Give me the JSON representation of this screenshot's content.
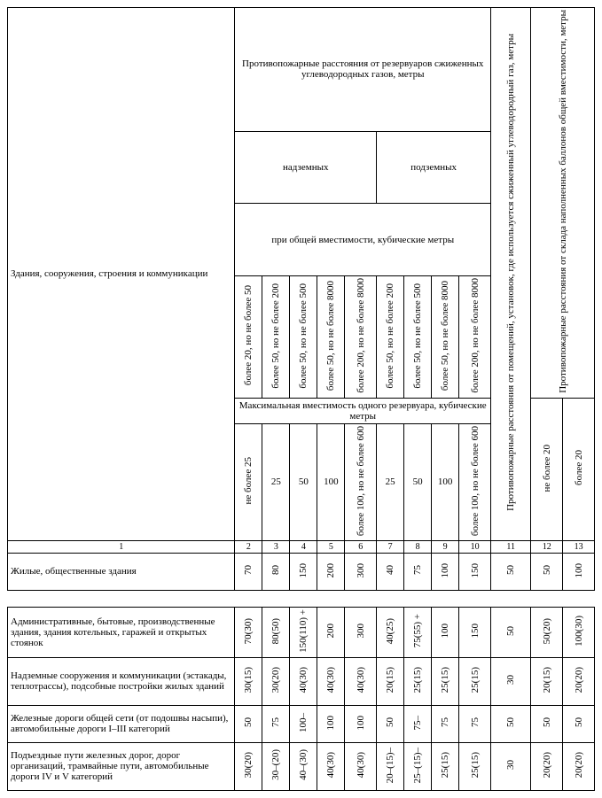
{
  "header": {
    "main": "Противопожарные расстояния от резервуаров сжиженных углеводородных газов, метры",
    "surface": "надземных",
    "underground": "подземных",
    "capacity_line": "при общей вместимости, кубические метры",
    "max_line": "Максимальная вместимость одного резервуара, кубические метры",
    "col11": "Противопожарные расстояния от помещений, установок, где используется сжиженный углеводородный газ, метры",
    "col12_13": "Противопожарные расстояния от склада наполненных баллонов общей вместимости, метры",
    "row_label": "Здания, сооружения, строения и коммуникации"
  },
  "caps": {
    "c2": "более 20, но не более 50",
    "c3": "более 50, но не более 200",
    "c4": "более 50, но не более 500",
    "c5": "более 50, но не более 8000",
    "c6": "более 200, но не более 8000",
    "c7": "более 50, но не более 200",
    "c8": "более 50, но не более 500",
    "c9": "более 50, но не более 8000",
    "c10": "более 200, но не более 8000"
  },
  "maxcaps": {
    "m2": "не более 25",
    "m3": "25",
    "m4": "50",
    "m5": "100",
    "m6": "более 100, но не более 600",
    "m7": "25",
    "m8": "50",
    "m9": "100",
    "m10": "более 100, но не более 600",
    "m12": "не более 20",
    "m13": "более 20"
  },
  "colnums": {
    "c1": "1",
    "c2": "2",
    "c3": "3",
    "c4": "4",
    "c5": "5",
    "c6": "6",
    "c7": "7",
    "c8": "8",
    "c9": "9",
    "c10": "10",
    "c11": "11",
    "c12": "12",
    "c13": "13"
  },
  "rows": [
    {
      "label": "Жилые, общественные здания",
      "v": [
        "70",
        "80",
        "150",
        "200",
        "300",
        "40",
        "75",
        "100",
        "150",
        "50",
        "50",
        "100"
      ]
    },
    {
      "label": "Административные, бытовые, производственные здания, здания котельных, гаражей и открытых стоянок",
      "v": [
        "70(30)",
        "80(50)",
        "150(110) +",
        "200",
        "300",
        "40(25)",
        "75(55) +",
        "100",
        "150",
        "50",
        "50(20)",
        "100(30)"
      ]
    },
    {
      "label": "Надземные сооружения и коммуникации (эстакады, теплотрассы), подсобные постройки жилых зданий",
      "v": [
        "30(15)",
        "30(20)",
        "40(30)",
        "40(30)",
        "40(30)",
        "20(15)",
        "25(15)",
        "25(15)",
        "25(15)",
        "30",
        "20(15)",
        "20(20)"
      ]
    },
    {
      "label": "Железные дороги общей сети (от подошвы насыпи), автомобильные дороги I–III категорий",
      "v": [
        "50",
        "75",
        "100–",
        "100",
        "100",
        "50",
        "75–",
        "75",
        "75",
        "50",
        "50",
        "50"
      ]
    },
    {
      "label": "Подъездные пути железных дорог, дорог организаций, трамвайные пути, автомобильные дороги IV и V категорий",
      "v": [
        "30(20)",
        "30–(20)",
        "40–(30)",
        "40(30)",
        "40(30)",
        "20–(15)–",
        "25–(15)–",
        "25(15)",
        "25(15)",
        "30",
        "20(20)",
        "20(20)"
      ]
    }
  ]
}
